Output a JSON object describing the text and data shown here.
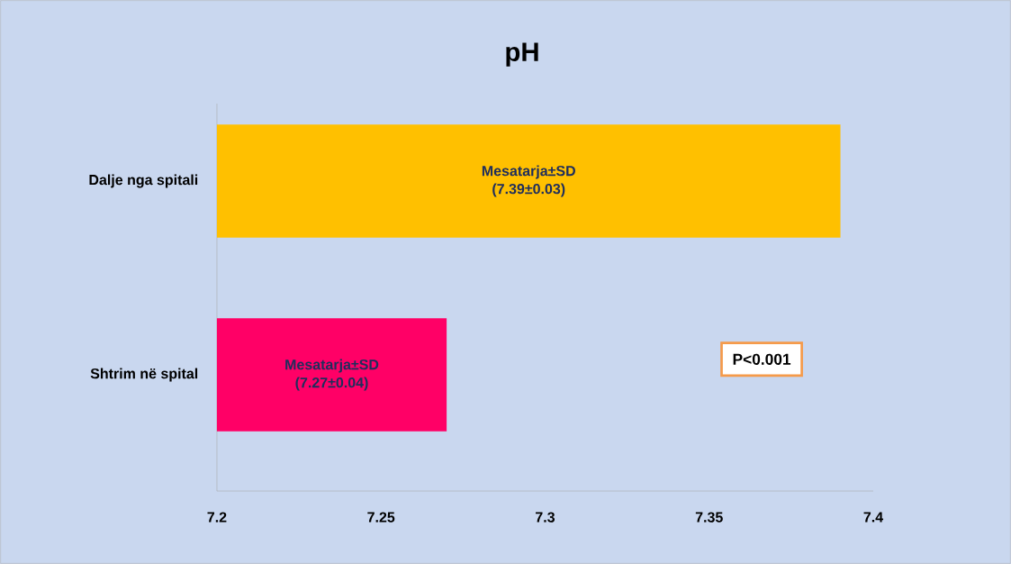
{
  "chart_data": {
    "type": "bar",
    "orientation": "horizontal",
    "title": "pH",
    "categories": [
      "Dalje nga spitali",
      "Shtrim në spital"
    ],
    "values": [
      7.39,
      7.27
    ],
    "colors": [
      "#ffc000",
      "#ff0066"
    ],
    "value_labels": [
      "Mesatarja±SD (7.39±0.03)",
      "Mesatarja±SD (7.27±0.04)"
    ],
    "xlim": [
      7.2,
      7.4
    ],
    "xticks": [
      7.2,
      7.25,
      7.3,
      7.35,
      7.4
    ],
    "annotations": [
      "P<0.001"
    ]
  }
}
